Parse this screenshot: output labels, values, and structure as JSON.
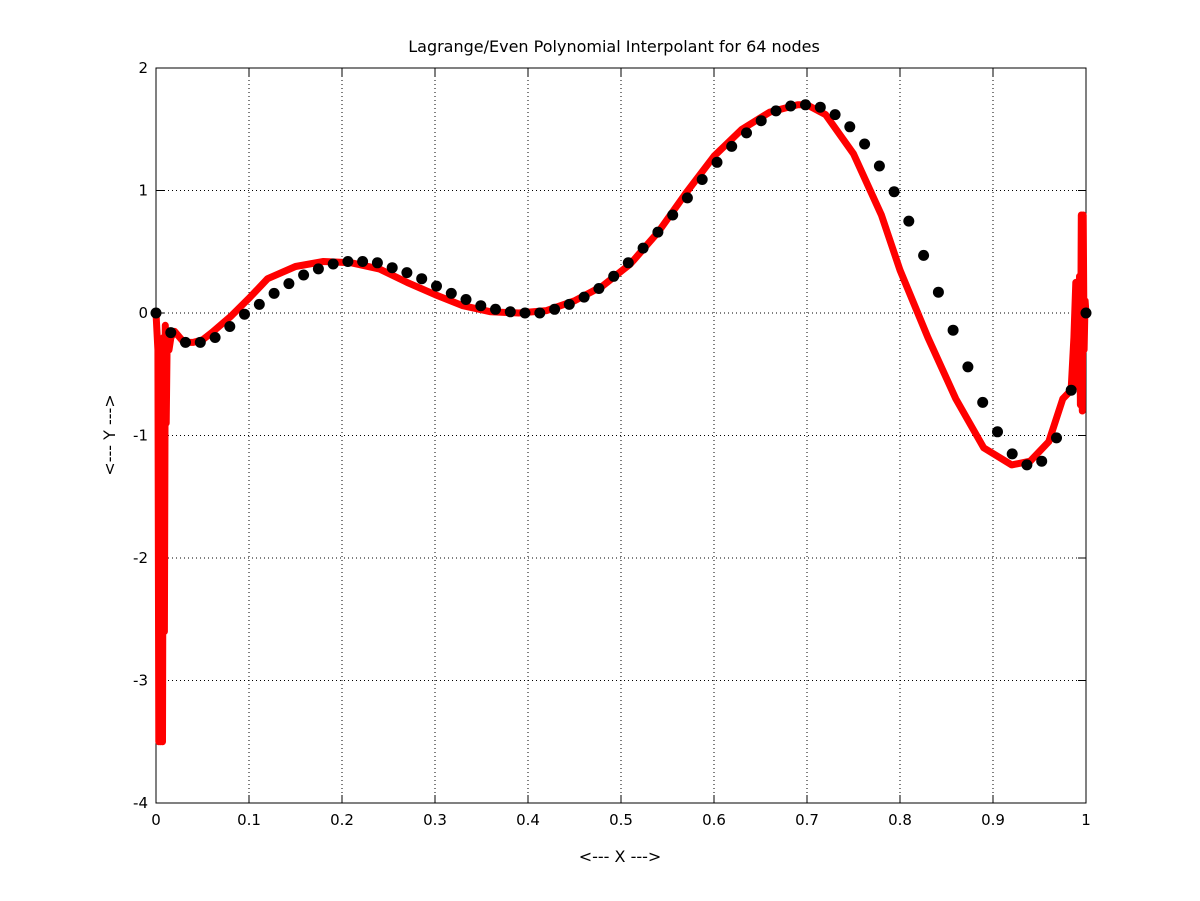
{
  "chart_data": {
    "type": "line",
    "title": "Lagrange/Even Polynomial Interpolant for 64 nodes",
    "xlabel": "<--- X --->",
    "ylabel": "<--- Y --->",
    "xlim": [
      0,
      1
    ],
    "ylim": [
      -4,
      2
    ],
    "xticks": [
      0,
      0.1,
      0.2,
      0.3,
      0.4,
      0.5,
      0.6,
      0.7,
      0.8,
      0.9,
      1
    ],
    "xtick_labels": [
      "0",
      "0.1",
      "0.2",
      "0.3",
      "0.4",
      "0.5",
      "0.6",
      "0.7",
      "0.8",
      "0.9",
      "1"
    ],
    "yticks": [
      -4,
      -3,
      -2,
      -1,
      0,
      1,
      2
    ],
    "ytick_labels": [
      "-4",
      "-3",
      "-2",
      "-1",
      "0",
      "1",
      "2"
    ],
    "grid": true,
    "legend": "none",
    "series": [
      {
        "style": "interpolant line",
        "color": "#ff0000",
        "x": [
          0,
          0.002,
          0.003,
          0.004,
          0.005,
          0.006,
          0.007,
          0.008,
          0.009,
          0.01,
          0.011,
          0.012,
          0.014,
          0.016,
          0.02,
          0.03,
          0.04,
          0.05,
          0.06,
          0.08,
          0.1,
          0.12,
          0.15,
          0.18,
          0.21,
          0.24,
          0.27,
          0.3,
          0.33,
          0.36,
          0.39,
          0.42,
          0.45,
          0.48,
          0.51,
          0.54,
          0.57,
          0.6,
          0.63,
          0.66,
          0.69,
          0.7,
          0.72,
          0.75,
          0.78,
          0.8,
          0.83,
          0.86,
          0.89,
          0.92,
          0.94,
          0.96,
          0.975,
          0.984,
          0.987,
          0.989,
          0.991,
          0.993,
          0.994,
          0.995,
          0.996,
          0.997,
          0.998,
          0.999,
          1
        ],
        "y": [
          0,
          -0.3,
          -3.5,
          -1.0,
          -3.5,
          -0.5,
          -3.5,
          -0.2,
          -2.6,
          -0.1,
          -0.9,
          -0.2,
          -0.3,
          -0.2,
          -0.15,
          -0.24,
          -0.24,
          -0.22,
          -0.16,
          -0.03,
          0.12,
          0.28,
          0.38,
          0.42,
          0.41,
          0.36,
          0.25,
          0.15,
          0.06,
          0.01,
          0.0,
          0.02,
          0.1,
          0.22,
          0.4,
          0.66,
          0.98,
          1.28,
          1.5,
          1.64,
          1.7,
          1.7,
          1.62,
          1.3,
          0.8,
          0.35,
          -0.2,
          -0.7,
          -1.1,
          -1.24,
          -1.21,
          -1.05,
          -0.7,
          -0.63,
          -0.2,
          0.25,
          -0.6,
          0.3,
          -0.75,
          0.8,
          -0.8,
          0.8,
          -0.3,
          0.1,
          0
        ]
      },
      {
        "style": "nodes",
        "color": "#000000",
        "x": [
          0,
          0.0159,
          0.0317,
          0.0476,
          0.0635,
          0.0794,
          0.0952,
          0.1111,
          0.127,
          0.1429,
          0.1587,
          0.1746,
          0.1905,
          0.2063,
          0.2222,
          0.2381,
          0.254,
          0.2698,
          0.2857,
          0.3016,
          0.3175,
          0.3333,
          0.3492,
          0.3651,
          0.381,
          0.3968,
          0.4127,
          0.4286,
          0.4444,
          0.4603,
          0.4762,
          0.4921,
          0.5079,
          0.5238,
          0.5397,
          0.5556,
          0.5714,
          0.5873,
          0.6032,
          0.619,
          0.6349,
          0.6508,
          0.6667,
          0.6825,
          0.6984,
          0.7143,
          0.7302,
          0.746,
          0.7619,
          0.7778,
          0.7937,
          0.8095,
          0.8254,
          0.8413,
          0.8571,
          0.873,
          0.8889,
          0.9048,
          0.9206,
          0.9365,
          0.9524,
          0.9683,
          0.9841,
          1
        ],
        "y": [
          0,
          -0.16,
          -0.24,
          -0.24,
          -0.2,
          -0.11,
          -0.01,
          0.07,
          0.16,
          0.24,
          0.31,
          0.36,
          0.4,
          0.42,
          0.42,
          0.41,
          0.37,
          0.33,
          0.28,
          0.22,
          0.16,
          0.11,
          0.06,
          0.03,
          0.01,
          0.0,
          0.0,
          0.03,
          0.07,
          0.13,
          0.2,
          0.3,
          0.41,
          0.53,
          0.66,
          0.8,
          0.94,
          1.09,
          1.23,
          1.36,
          1.47,
          1.57,
          1.65,
          1.69,
          1.7,
          1.68,
          1.62,
          1.52,
          1.38,
          1.2,
          0.99,
          0.75,
          0.47,
          0.17,
          -0.14,
          -0.44,
          -0.73,
          -0.97,
          -1.15,
          -1.24,
          -1.21,
          -1.02,
          -0.63,
          0
        ]
      }
    ]
  }
}
